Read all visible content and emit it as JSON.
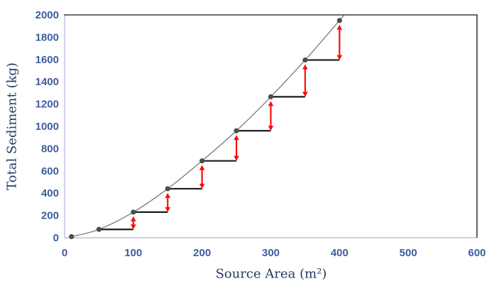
{
  "chart_data": {
    "type": "scatter",
    "title": "",
    "xlabel": "Source Area (m²)",
    "ylabel": "Total Sediment (kg)",
    "xlim": [
      0,
      600
    ],
    "ylim": [
      0,
      2000
    ],
    "xticks": [
      0,
      100,
      200,
      300,
      400,
      500,
      600
    ],
    "yticks": [
      0,
      200,
      400,
      600,
      800,
      1000,
      1200,
      1400,
      1600,
      1800,
      2000
    ],
    "grid": false,
    "legend": false,
    "series": [
      {
        "name": "cumulative-total-sediment",
        "style": "smooth-gray-curve-with-dark-round-markers",
        "x": [
          10,
          50,
          100,
          150,
          200,
          250,
          300,
          350,
          400
        ],
        "y": [
          10,
          75,
          230,
          440,
          690,
          960,
          1265,
          1595,
          1950
        ]
      }
    ],
    "stair_steps": {
      "description": "Horizontal black line from each marker to the next marker's x-position, with a red double-headed vertical arrow showing the incremental rise up to the curve",
      "steps": [
        {
          "x_start": 50,
          "x_end": 100,
          "y_level": 75,
          "y_arrow_top": 230
        },
        {
          "x_start": 100,
          "x_end": 150,
          "y_level": 230,
          "y_arrow_top": 440
        },
        {
          "x_start": 150,
          "x_end": 200,
          "y_level": 440,
          "y_arrow_top": 690
        },
        {
          "x_start": 200,
          "x_end": 250,
          "y_level": 690,
          "y_arrow_top": 960
        },
        {
          "x_start": 250,
          "x_end": 300,
          "y_level": 960,
          "y_arrow_top": 1265
        },
        {
          "x_start": 300,
          "x_end": 350,
          "y_level": 1265,
          "y_arrow_top": 1595
        },
        {
          "x_start": 350,
          "x_end": 400,
          "y_level": 1595,
          "y_arrow_top": 1950
        }
      ]
    },
    "colors": {
      "marker": "#4d4d4d",
      "curve": "#7a7a7a",
      "step_line": "#1c1c1c",
      "arrow": "#fe0b0b",
      "tick_label": "#3e5c9e",
      "axis_title": "#243a63",
      "border_dark": "#3d3d3d",
      "axis_light": "#b7c3dc",
      "background": "#ffffff"
    }
  }
}
